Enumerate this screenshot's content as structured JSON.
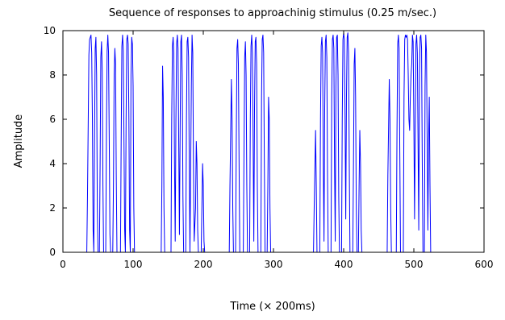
{
  "chart_data": {
    "type": "line",
    "title": "Sequence of responses to approachinig stimulus (0.25 m/sec.)",
    "xlabel": "Time (× 200ms)",
    "ylabel": "Amplitude",
    "xlim": [
      0,
      600
    ],
    "ylim": [
      0,
      10
    ],
    "xticks": [
      "0",
      "100",
      "200",
      "300",
      "400",
      "500",
      "600"
    ],
    "yticks": [
      "0",
      "2",
      "4",
      "6",
      "8",
      "10"
    ],
    "grid": false,
    "series": [
      {
        "color": "#0000ff",
        "points": [
          [
            0,
            0
          ],
          [
            34,
            0
          ],
          [
            35,
            2.5
          ],
          [
            37,
            8.9
          ],
          [
            38,
            9.6
          ],
          [
            40,
            9.8
          ],
          [
            41,
            9.0
          ],
          [
            42,
            6.0
          ],
          [
            43,
            1.0
          ],
          [
            44,
            0
          ],
          [
            45,
            5.0
          ],
          [
            46,
            9.2
          ],
          [
            47,
            9.7
          ],
          [
            48,
            8.0
          ],
          [
            49,
            2.0
          ],
          [
            50,
            0
          ],
          [
            52,
            0
          ],
          [
            53,
            4.0
          ],
          [
            54,
            8.8
          ],
          [
            55,
            9.5
          ],
          [
            56,
            8.2
          ],
          [
            57,
            3.0
          ],
          [
            58,
            0
          ],
          [
            61,
            0
          ],
          [
            62,
            5.5
          ],
          [
            63,
            9.1
          ],
          [
            64,
            9.8
          ],
          [
            65,
            9.0
          ],
          [
            66,
            5.0
          ],
          [
            67,
            0.8
          ],
          [
            68,
            0
          ],
          [
            71,
            0
          ],
          [
            72,
            3.0
          ],
          [
            73,
            8.0
          ],
          [
            74,
            9.2
          ],
          [
            75,
            8.5
          ],
          [
            76,
            3.5
          ],
          [
            77,
            0
          ],
          [
            82,
            0
          ],
          [
            83,
            5.0
          ],
          [
            84,
            9.3
          ],
          [
            85,
            9.8
          ],
          [
            86,
            9.1
          ],
          [
            87,
            5.0
          ],
          [
            88,
            1.0
          ],
          [
            89,
            0
          ],
          [
            90,
            6.0
          ],
          [
            91,
            9.6
          ],
          [
            92,
            9.8
          ],
          [
            93,
            9.4
          ],
          [
            94,
            6.0
          ],
          [
            95,
            1.0
          ],
          [
            96,
            0
          ],
          [
            97,
            8.0
          ],
          [
            98,
            9.7
          ],
          [
            99,
            9.4
          ],
          [
            100,
            7.5
          ],
          [
            101,
            2.0
          ],
          [
            102,
            0
          ],
          [
            140,
            0
          ],
          [
            141,
            3.0
          ],
          [
            142,
            8.4
          ],
          [
            143,
            7.0
          ],
          [
            144,
            2.0
          ],
          [
            145,
            0
          ],
          [
            154,
            0
          ],
          [
            155,
            6.0
          ],
          [
            156,
            9.3
          ],
          [
            157,
            9.7
          ],
          [
            158,
            9.0
          ],
          [
            159,
            4.0
          ],
          [
            160,
            0.5
          ],
          [
            161,
            6.0
          ],
          [
            162,
            9.4
          ],
          [
            163,
            9.8
          ],
          [
            164,
            9.2
          ],
          [
            165,
            5.0
          ],
          [
            166,
            0.8
          ],
          [
            167,
            5.5
          ],
          [
            168,
            9.5
          ],
          [
            169,
            9.8
          ],
          [
            170,
            8.0
          ],
          [
            171,
            2.5
          ],
          [
            172,
            0
          ],
          [
            175,
            0
          ],
          [
            176,
            6.0
          ],
          [
            177,
            9.5
          ],
          [
            178,
            9.7
          ],
          [
            179,
            8.8
          ],
          [
            180,
            4.0
          ],
          [
            181,
            0
          ],
          [
            183,
            7.5
          ],
          [
            184,
            9.8
          ],
          [
            185,
            9.0
          ],
          [
            186,
            4.0
          ],
          [
            187,
            0.5
          ],
          [
            189,
            2.0
          ],
          [
            190,
            5.0
          ],
          [
            191,
            4.0
          ],
          [
            192,
            1.0
          ],
          [
            193,
            0
          ],
          [
            197,
            0
          ],
          [
            198,
            2.0
          ],
          [
            199,
            4.0
          ],
          [
            200,
            3.0
          ],
          [
            201,
            0.5
          ],
          [
            202,
            0
          ],
          [
            237,
            0
          ],
          [
            238,
            3.0
          ],
          [
            240,
            7.8
          ],
          [
            241,
            6.0
          ],
          [
            242,
            2.0
          ],
          [
            243,
            0
          ],
          [
            246,
            0
          ],
          [
            247,
            5.0
          ],
          [
            248,
            9.2
          ],
          [
            249,
            9.6
          ],
          [
            250,
            8.5
          ],
          [
            251,
            4.0
          ],
          [
            252,
            0
          ],
          [
            257,
            0
          ],
          [
            258,
            4.5
          ],
          [
            259,
            8.8
          ],
          [
            260,
            9.5
          ],
          [
            261,
            8.0
          ],
          [
            262,
            3.0
          ],
          [
            263,
            0
          ],
          [
            266,
            0
          ],
          [
            267,
            6.0
          ],
          [
            268,
            9.3
          ],
          [
            269,
            9.8
          ],
          [
            270,
            9.0
          ],
          [
            271,
            5.0
          ],
          [
            272,
            0.5
          ],
          [
            273,
            6.5
          ],
          [
            274,
            9.5
          ],
          [
            275,
            9.7
          ],
          [
            276,
            8.5
          ],
          [
            277,
            3.0
          ],
          [
            278,
            0
          ],
          [
            282,
            0
          ],
          [
            283,
            7.0
          ],
          [
            284,
            9.6
          ],
          [
            285,
            9.8
          ],
          [
            286,
            9.0
          ],
          [
            287,
            4.0
          ],
          [
            288,
            0
          ],
          [
            291,
            0
          ],
          [
            292,
            3.0
          ],
          [
            293,
            7.0
          ],
          [
            294,
            6.0
          ],
          [
            295,
            2.0
          ],
          [
            296,
            0
          ],
          [
            357,
            0
          ],
          [
            358,
            2.0
          ],
          [
            360,
            5.5
          ],
          [
            361,
            3.0
          ],
          [
            362,
            0
          ],
          [
            366,
            0
          ],
          [
            367,
            6.0
          ],
          [
            368,
            9.3
          ],
          [
            369,
            9.7
          ],
          [
            370,
            9.0
          ],
          [
            371,
            4.0
          ],
          [
            372,
            0.5
          ],
          [
            373,
            6.5
          ],
          [
            374,
            9.5
          ],
          [
            375,
            9.8
          ],
          [
            376,
            8.8
          ],
          [
            377,
            3.5
          ],
          [
            378,
            0
          ],
          [
            382,
            0
          ],
          [
            383,
            7.0
          ],
          [
            384,
            9.6
          ],
          [
            385,
            9.8
          ],
          [
            386,
            9.2
          ],
          [
            387,
            4.0
          ],
          [
            388,
            0.5
          ],
          [
            389,
            7.5
          ],
          [
            390,
            9.7
          ],
          [
            391,
            9.8
          ],
          [
            392,
            8.0
          ],
          [
            393,
            2.5
          ],
          [
            394,
            0
          ],
          [
            397,
            0
          ],
          [
            398,
            6.0
          ],
          [
            399,
            9.6
          ],
          [
            400,
            9.9
          ],
          [
            401,
            9.6
          ],
          [
            402,
            6.0
          ],
          [
            403,
            1.5
          ],
          [
            404,
            7.0
          ],
          [
            405,
            9.7
          ],
          [
            406,
            9.9
          ],
          [
            407,
            9.0
          ],
          [
            408,
            4.0
          ],
          [
            409,
            0
          ],
          [
            413,
            0
          ],
          [
            414,
            4.0
          ],
          [
            415,
            8.5
          ],
          [
            416,
            9.2
          ],
          [
            417,
            7.0
          ],
          [
            418,
            2.0
          ],
          [
            419,
            0
          ],
          [
            421,
            0
          ],
          [
            422,
            3.0
          ],
          [
            423,
            5.5
          ],
          [
            424,
            4.0
          ],
          [
            425,
            1.0
          ],
          [
            426,
            0
          ],
          [
            462,
            0
          ],
          [
            463,
            3.5
          ],
          [
            465,
            7.8
          ],
          [
            466,
            6.0
          ],
          [
            467,
            2.0
          ],
          [
            468,
            0
          ],
          [
            475,
            0
          ],
          [
            476,
            5.5
          ],
          [
            477,
            9.4
          ],
          [
            478,
            9.8
          ],
          [
            479,
            9.2
          ],
          [
            480,
            4.5
          ],
          [
            481,
            0
          ],
          [
            485,
            0
          ],
          [
            486,
            7.0
          ],
          [
            487,
            9.6
          ],
          [
            488,
            9.8
          ],
          [
            489,
            9.7
          ],
          [
            490,
            9.8
          ],
          [
            491,
            9.6
          ],
          [
            492,
            8.0
          ],
          [
            493,
            6.0
          ],
          [
            494,
            5.5
          ],
          [
            495,
            7.0
          ],
          [
            496,
            8.0
          ],
          [
            497,
            8.5
          ],
          [
            498,
            9.8
          ],
          [
            499,
            9.5
          ],
          [
            500,
            6.0
          ],
          [
            501,
            1.5
          ],
          [
            502,
            5.5
          ],
          [
            503,
            9.4
          ],
          [
            504,
            9.8
          ],
          [
            505,
            9.0
          ],
          [
            506,
            5.0
          ],
          [
            507,
            1.0
          ],
          [
            508,
            8.0
          ],
          [
            509,
            9.7
          ],
          [
            510,
            9.8
          ],
          [
            511,
            9.2
          ],
          [
            512,
            4.0
          ],
          [
            513,
            0
          ],
          [
            515,
            0
          ],
          [
            516,
            7.5
          ],
          [
            517,
            9.8
          ],
          [
            518,
            9.0
          ],
          [
            519,
            5.0
          ],
          [
            520,
            1.0
          ],
          [
            521,
            5.0
          ],
          [
            522,
            7.0
          ],
          [
            523,
            3.0
          ],
          [
            524,
            0
          ],
          [
            600,
            0
          ]
        ]
      }
    ]
  }
}
